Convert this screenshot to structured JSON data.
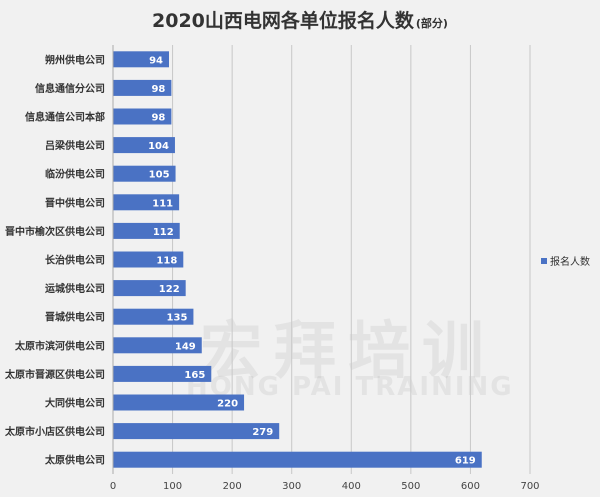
{
  "chart_data": {
    "type": "bar",
    "orientation": "horizontal",
    "title": "2020山西电网各单位报名人数",
    "subtitle": "(部分)",
    "categories": [
      "朔州供电公司",
      "信息通信分公司",
      "信息通信公司本部",
      "吕梁供电公司",
      "临汾供电公司",
      "晋中供电公司",
      "晋中市榆次区供电公司",
      "长治供电公司",
      "运城供电公司",
      "晋城供电公司",
      "太原市滨河供电公司",
      "太原市晋源区供电公司",
      "大同供电公司",
      "太原市小店区供电公司",
      "太原供电公司"
    ],
    "series": [
      {
        "name": "报名人数",
        "values": [
          94,
          98,
          98,
          104,
          105,
          111,
          112,
          118,
          122,
          135,
          149,
          165,
          220,
          279,
          619
        ]
      }
    ],
    "xlim": [
      0,
      700
    ],
    "xticks": [
      0,
      100,
      200,
      300,
      400,
      500,
      600,
      700
    ],
    "grid": true,
    "data_labels": true,
    "legend_position": "right",
    "bar_color": "#4a72c4"
  },
  "watermark": {
    "cn": "宏拜培训",
    "en": "HONG PAI TRAINING"
  }
}
